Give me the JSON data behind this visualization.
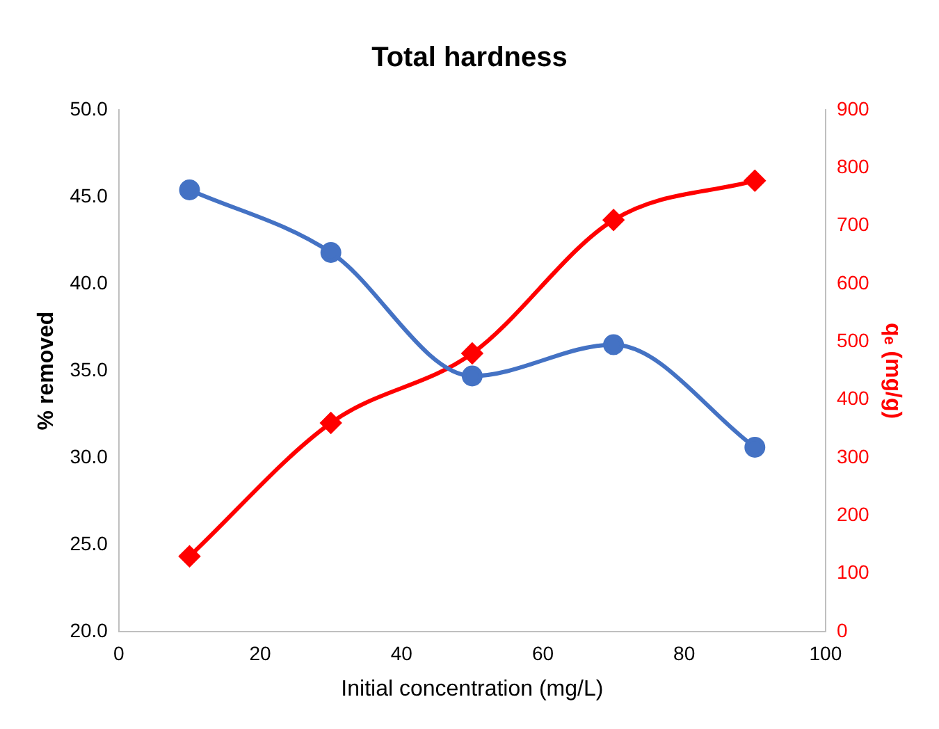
{
  "chart_data": {
    "type": "line",
    "title": "Total hardness",
    "xlabel": "Initial concentration (mg/L)",
    "ylabel": "% removed",
    "y2label": "qₑ (mg/g)",
    "x": [
      10,
      30,
      50,
      70,
      90
    ],
    "xlim": [
      0,
      100
    ],
    "xticks": [
      0,
      20,
      40,
      60,
      80,
      100
    ],
    "ylim": [
      20,
      50
    ],
    "yticks": [
      {
        "value": 20,
        "label": "20.0"
      },
      {
        "value": 25,
        "label": "25.0"
      },
      {
        "value": 30,
        "label": "30.0"
      },
      {
        "value": 35,
        "label": "35.0"
      },
      {
        "value": 40,
        "label": "40.0"
      },
      {
        "value": 45,
        "label": "45.0"
      },
      {
        "value": 50,
        "label": "50.0"
      }
    ],
    "y2lim": [
      0,
      900
    ],
    "y2ticks": [
      0,
      100,
      200,
      300,
      400,
      500,
      600,
      700,
      800,
      900
    ],
    "grid": false,
    "legend": false,
    "series": [
      {
        "color": "#4472c4",
        "marker": "circle",
        "values": [
          45.4,
          41.8,
          34.7,
          36.5,
          30.6
        ]
      },
      {
        "color": "#ff0000",
        "marker": "diamond",
        "axis": "y2",
        "values": [
          130,
          360,
          480,
          710,
          778
        ]
      }
    ]
  }
}
